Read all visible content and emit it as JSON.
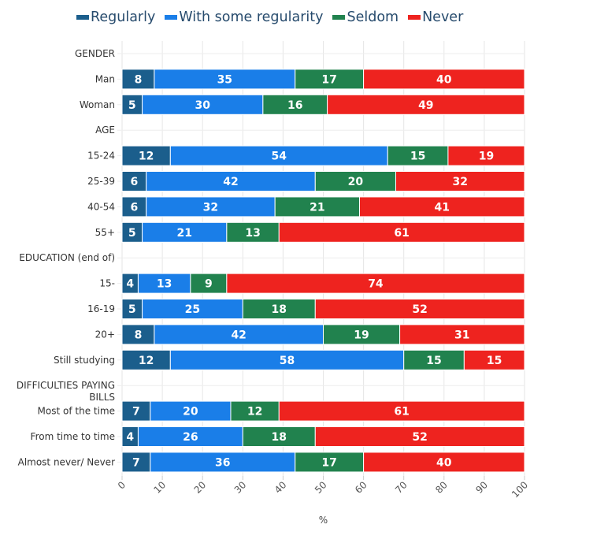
{
  "chart_data": {
    "type": "bar",
    "orientation": "horizontal",
    "stacked": true,
    "title": "",
    "xlabel": "%",
    "ylabel": "",
    "xlim": [
      0,
      100
    ],
    "xticks": [
      "0",
      "10",
      "20",
      "30",
      "40",
      "50",
      "60",
      "70",
      "80",
      "90",
      "100"
    ],
    "grid": true,
    "legend_position": "top",
    "series": [
      {
        "name": "Regularly",
        "color": "#1b5e8c"
      },
      {
        "name": "With some regularity",
        "color": "#1a7ee8"
      },
      {
        "name": "Seldom",
        "color": "#21824e"
      },
      {
        "name": "Never",
        "color": "#ee231f"
      }
    ],
    "rows": [
      {
        "label": "GENDER",
        "header": true,
        "values": null
      },
      {
        "label": "Man",
        "header": false,
        "values": [
          8,
          35,
          17,
          40
        ]
      },
      {
        "label": "Woman",
        "header": false,
        "values": [
          5,
          30,
          16,
          49
        ]
      },
      {
        "label": "AGE",
        "header": true,
        "values": null
      },
      {
        "label": "15-24",
        "header": false,
        "values": [
          12,
          54,
          15,
          19
        ]
      },
      {
        "label": "25-39",
        "header": false,
        "values": [
          6,
          42,
          20,
          32
        ]
      },
      {
        "label": "40-54",
        "header": false,
        "values": [
          6,
          32,
          21,
          41
        ]
      },
      {
        "label": "55+",
        "header": false,
        "values": [
          5,
          21,
          13,
          61
        ]
      },
      {
        "label": "EDUCATION (end of)",
        "header": true,
        "values": null
      },
      {
        "label": "15-",
        "header": false,
        "values": [
          4,
          13,
          9,
          74
        ]
      },
      {
        "label": "16-19",
        "header": false,
        "values": [
          5,
          25,
          18,
          52
        ]
      },
      {
        "label": "20+",
        "header": false,
        "values": [
          8,
          42,
          19,
          31
        ]
      },
      {
        "label": "Still studying",
        "header": false,
        "values": [
          12,
          58,
          15,
          15
        ]
      },
      {
        "label": "DIFFICULTIES PAYING|BILLS",
        "header": true,
        "values": null
      },
      {
        "label": "Most of the time",
        "header": false,
        "values": [
          7,
          20,
          12,
          61
        ]
      },
      {
        "label": "From time to time",
        "header": false,
        "values": [
          4,
          26,
          18,
          52
        ]
      },
      {
        "label": "Almost never/ Never",
        "header": false,
        "values": [
          7,
          36,
          17,
          40
        ]
      }
    ]
  }
}
